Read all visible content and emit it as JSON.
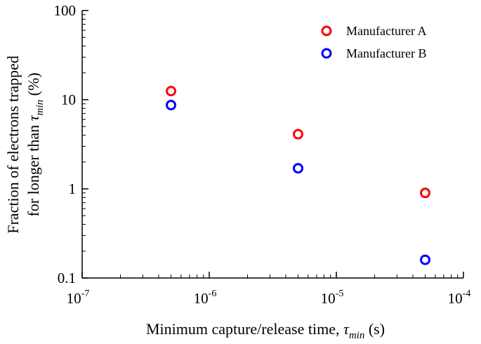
{
  "chart_data": {
    "type": "scatter",
    "title": "",
    "xlabel": {
      "text": "Minimum capture/release time, ",
      "symbol": "τ",
      "subscript": "min",
      "unit": " (s)"
    },
    "ylabel": {
      "line1": "Fraction of electrons trapped",
      "line2_text": "for longer than ",
      "line2_symbol": "τ",
      "line2_subscript": "min",
      "line2_unit": " (%)"
    },
    "xscale": "log",
    "yscale": "log",
    "xlim": [
      1e-07,
      0.0001
    ],
    "ylim": [
      0.1,
      100
    ],
    "x_ticks": [
      {
        "value": 1e-07,
        "base": "10",
        "exp": "-7"
      },
      {
        "value": 1e-06,
        "base": "10",
        "exp": "-6"
      },
      {
        "value": 1e-05,
        "base": "10",
        "exp": "-5"
      },
      {
        "value": 0.0001,
        "base": "10",
        "exp": "-4"
      }
    ],
    "y_ticks": [
      {
        "value": 0.1,
        "label": "0.1"
      },
      {
        "value": 1,
        "label": "1"
      },
      {
        "value": 10,
        "label": "10"
      },
      {
        "value": 100,
        "label": "100"
      }
    ],
    "grid": false,
    "legend_position": "top-right",
    "series": [
      {
        "name": "Manufacturer A",
        "color": "#ff0000",
        "marker": "open-circle",
        "x": [
          5e-07,
          5e-06,
          5e-05
        ],
        "y": [
          12.5,
          4.1,
          0.9
        ]
      },
      {
        "name": "Manufacturer B",
        "color": "#0000ff",
        "marker": "open-circle",
        "x": [
          5e-07,
          5e-06,
          5e-05
        ],
        "y": [
          8.7,
          1.7,
          0.16
        ]
      }
    ]
  }
}
